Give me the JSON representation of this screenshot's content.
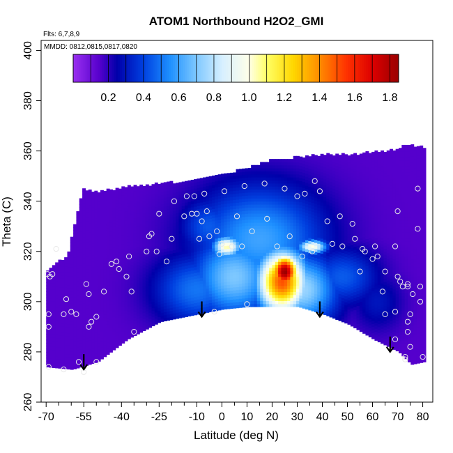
{
  "chart_data": {
    "type": "heatmap",
    "title": "ATOM1 Northbound H2O2_GMI",
    "flights_note": "Flts: 6,7,8,9",
    "dates_note": "MMDD: 0812,0815,0817,0820",
    "xlabel": "Latitude (deg N)",
    "ylabel": "Theta (C)",
    "xlim": [
      -72,
      84
    ],
    "ylim": [
      260,
      404
    ],
    "x_ticks": [
      -70,
      -55,
      -40,
      -25,
      -10,
      0,
      10,
      20,
      30,
      40,
      50,
      60,
      70,
      80
    ],
    "x_minor_ticks": [
      -65,
      -60,
      -50,
      -45,
      -35,
      -30,
      -20,
      -15,
      -5,
      5,
      15,
      25,
      35,
      45,
      55,
      65,
      75
    ],
    "y_ticks": [
      260,
      280,
      300,
      320,
      340,
      360,
      380,
      400
    ],
    "colorbar": {
      "range": [
        0.0,
        1.85
      ],
      "ticks": [
        0.2,
        0.4,
        0.6,
        0.8,
        1.0,
        1.2,
        1.4,
        1.6,
        1.8
      ],
      "stops": [
        {
          "v": 0.0,
          "c": "#9a30f0"
        },
        {
          "v": 0.15,
          "c": "#5500cc"
        },
        {
          "v": 0.25,
          "c": "#0000aa"
        },
        {
          "v": 0.4,
          "c": "#0040e0"
        },
        {
          "v": 0.55,
          "c": "#1e90ff"
        },
        {
          "v": 0.7,
          "c": "#7ec8ff"
        },
        {
          "v": 0.85,
          "c": "#d8f0ff"
        },
        {
          "v": 1.0,
          "c": "#ffffe8"
        },
        {
          "v": 1.1,
          "c": "#ffff66"
        },
        {
          "v": 1.25,
          "c": "#ffd700"
        },
        {
          "v": 1.4,
          "c": "#ff8c00"
        },
        {
          "v": 1.55,
          "c": "#ff3300"
        },
        {
          "v": 1.7,
          "c": "#dd0000"
        },
        {
          "v": 1.85,
          "c": "#990000"
        }
      ]
    },
    "field_bounds": {
      "top": [
        [
          -56,
          344
        ],
        [
          -50,
          343
        ],
        [
          -40,
          345
        ],
        [
          -30,
          346
        ],
        [
          -20,
          347
        ],
        [
          -10,
          348
        ],
        [
          0,
          350
        ],
        [
          10,
          353
        ],
        [
          20,
          356
        ],
        [
          30,
          357
        ],
        [
          40,
          358
        ],
        [
          50,
          358
        ],
        [
          60,
          359
        ],
        [
          70,
          360
        ],
        [
          72,
          362
        ],
        [
          80,
          361
        ]
      ],
      "bottom": [
        [
          -70,
          274
        ],
        [
          -60,
          273
        ],
        [
          -50,
          276
        ],
        [
          -38,
          285
        ],
        [
          -25,
          292
        ],
        [
          -10,
          295
        ],
        [
          0,
          297
        ],
        [
          10,
          298
        ],
        [
          20,
          298
        ],
        [
          30,
          298
        ],
        [
          40,
          295
        ],
        [
          50,
          291
        ],
        [
          60,
          285
        ],
        [
          70,
          280
        ],
        [
          75,
          275
        ],
        [
          80,
          276
        ]
      ],
      "left_edge": [
        [
          -70,
          312
        ],
        [
          -62,
          318
        ],
        [
          -58,
          335
        ],
        [
          -56,
          344
        ]
      ]
    },
    "field_hotspots": [
      {
        "lat": 25,
        "theta": 312,
        "value": 1.85,
        "sx": 4,
        "sy": 5
      },
      {
        "lat": 24,
        "theta": 308,
        "value": 1.5,
        "sx": 7,
        "sy": 9
      },
      {
        "lat": 2,
        "theta": 322,
        "value": 1.05,
        "sx": 4,
        "sy": 3
      },
      {
        "lat": 36,
        "theta": 322,
        "value": 1.0,
        "sx": 4,
        "sy": 2
      },
      {
        "lat": 5,
        "theta": 310,
        "value": 0.7,
        "sx": 12,
        "sy": 12
      },
      {
        "lat": 32,
        "theta": 305,
        "value": 0.75,
        "sx": 10,
        "sy": 10
      },
      {
        "lat": 15,
        "theta": 325,
        "value": 0.6,
        "sx": 18,
        "sy": 15
      },
      {
        "lat": -10,
        "theta": 305,
        "value": 0.5,
        "sx": 12,
        "sy": 10
      },
      {
        "lat": -5,
        "theta": 330,
        "value": 0.45,
        "sx": 8,
        "sy": 8
      },
      {
        "lat": 48,
        "theta": 310,
        "value": 0.45,
        "sx": 10,
        "sy": 8
      },
      {
        "lat": 62,
        "theta": 300,
        "value": 0.3,
        "sx": 7,
        "sy": 8
      }
    ],
    "field_base_value": 0.15,
    "sample_points": [
      [
        -69.5,
        311
      ],
      [
        -68.5,
        310
      ],
      [
        -67.5,
        311
      ],
      [
        -66,
        321
      ],
      [
        -69,
        295
      ],
      [
        -69,
        290
      ],
      [
        -69,
        274
      ],
      [
        -63,
        273
      ],
      [
        -63,
        295
      ],
      [
        -62,
        301
      ],
      [
        -60,
        296
      ],
      [
        -58,
        295
      ],
      [
        -57,
        276
      ],
      [
        -55,
        272
      ],
      [
        -54,
        307
      ],
      [
        -53,
        303
      ],
      [
        -53,
        290
      ],
      [
        -52,
        292
      ],
      [
        -50,
        294
      ],
      [
        -50,
        276
      ],
      [
        -47,
        304
      ],
      [
        -44,
        315
      ],
      [
        -42,
        316
      ],
      [
        -41,
        313
      ],
      [
        -38,
        310
      ],
      [
        -37,
        318
      ],
      [
        -36,
        304
      ],
      [
        -35,
        288
      ],
      [
        -30,
        320
      ],
      [
        -29,
        326
      ],
      [
        -28,
        327
      ],
      [
        -26,
        320
      ],
      [
        -25,
        335
      ],
      [
        -22,
        316
      ],
      [
        -20,
        325
      ],
      [
        -19,
        340
      ],
      [
        -15,
        334
      ],
      [
        -14,
        342
      ],
      [
        -12,
        335
      ],
      [
        -11,
        342
      ],
      [
        -10,
        335
      ],
      [
        -9,
        325
      ],
      [
        -8,
        332
      ],
      [
        -7,
        343
      ],
      [
        -6,
        336
      ],
      [
        -5,
        326
      ],
      [
        -3,
        296
      ],
      [
        -2,
        328
      ],
      [
        -1,
        319
      ],
      [
        0,
        323
      ],
      [
        1,
        344
      ],
      [
        4,
        322
      ],
      [
        6,
        334
      ],
      [
        8,
        322
      ],
      [
        9,
        346
      ],
      [
        10,
        299
      ],
      [
        12,
        328
      ],
      [
        17,
        347
      ],
      [
        18,
        333
      ],
      [
        22,
        322
      ],
      [
        25,
        345
      ],
      [
        27,
        326
      ],
      [
        30,
        342
      ],
      [
        32,
        318
      ],
      [
        33,
        343
      ],
      [
        36,
        320
      ],
      [
        37,
        348
      ],
      [
        39,
        344
      ],
      [
        42,
        332
      ],
      [
        44,
        323
      ],
      [
        47,
        334
      ],
      [
        48,
        322
      ],
      [
        52,
        331
      ],
      [
        53,
        325
      ],
      [
        55,
        312
      ],
      [
        56,
        321
      ],
      [
        57,
        320
      ],
      [
        60,
        317
      ],
      [
        61,
        322
      ],
      [
        62,
        318
      ],
      [
        64,
        304
      ],
      [
        65,
        295
      ],
      [
        65,
        312
      ],
      [
        69,
        322
      ],
      [
        69,
        296
      ],
      [
        69,
        285
      ],
      [
        70,
        310
      ],
      [
        70,
        336
      ],
      [
        71,
        308
      ],
      [
        72,
        306
      ],
      [
        73,
        278
      ],
      [
        73,
        277
      ],
      [
        74,
        307
      ],
      [
        74,
        306
      ],
      [
        74,
        292
      ],
      [
        74,
        288
      ],
      [
        75,
        295
      ],
      [
        75,
        282
      ],
      [
        76,
        303
      ],
      [
        78,
        329
      ],
      [
        78,
        345
      ],
      [
        79,
        306
      ],
      [
        79,
        300
      ],
      [
        80,
        278
      ]
    ],
    "arrows": [
      {
        "lat": -55,
        "theta": 273
      },
      {
        "lat": -8,
        "theta": 294
      },
      {
        "lat": 39,
        "theta": 294
      },
      {
        "lat": 67,
        "theta": 280
      }
    ]
  }
}
